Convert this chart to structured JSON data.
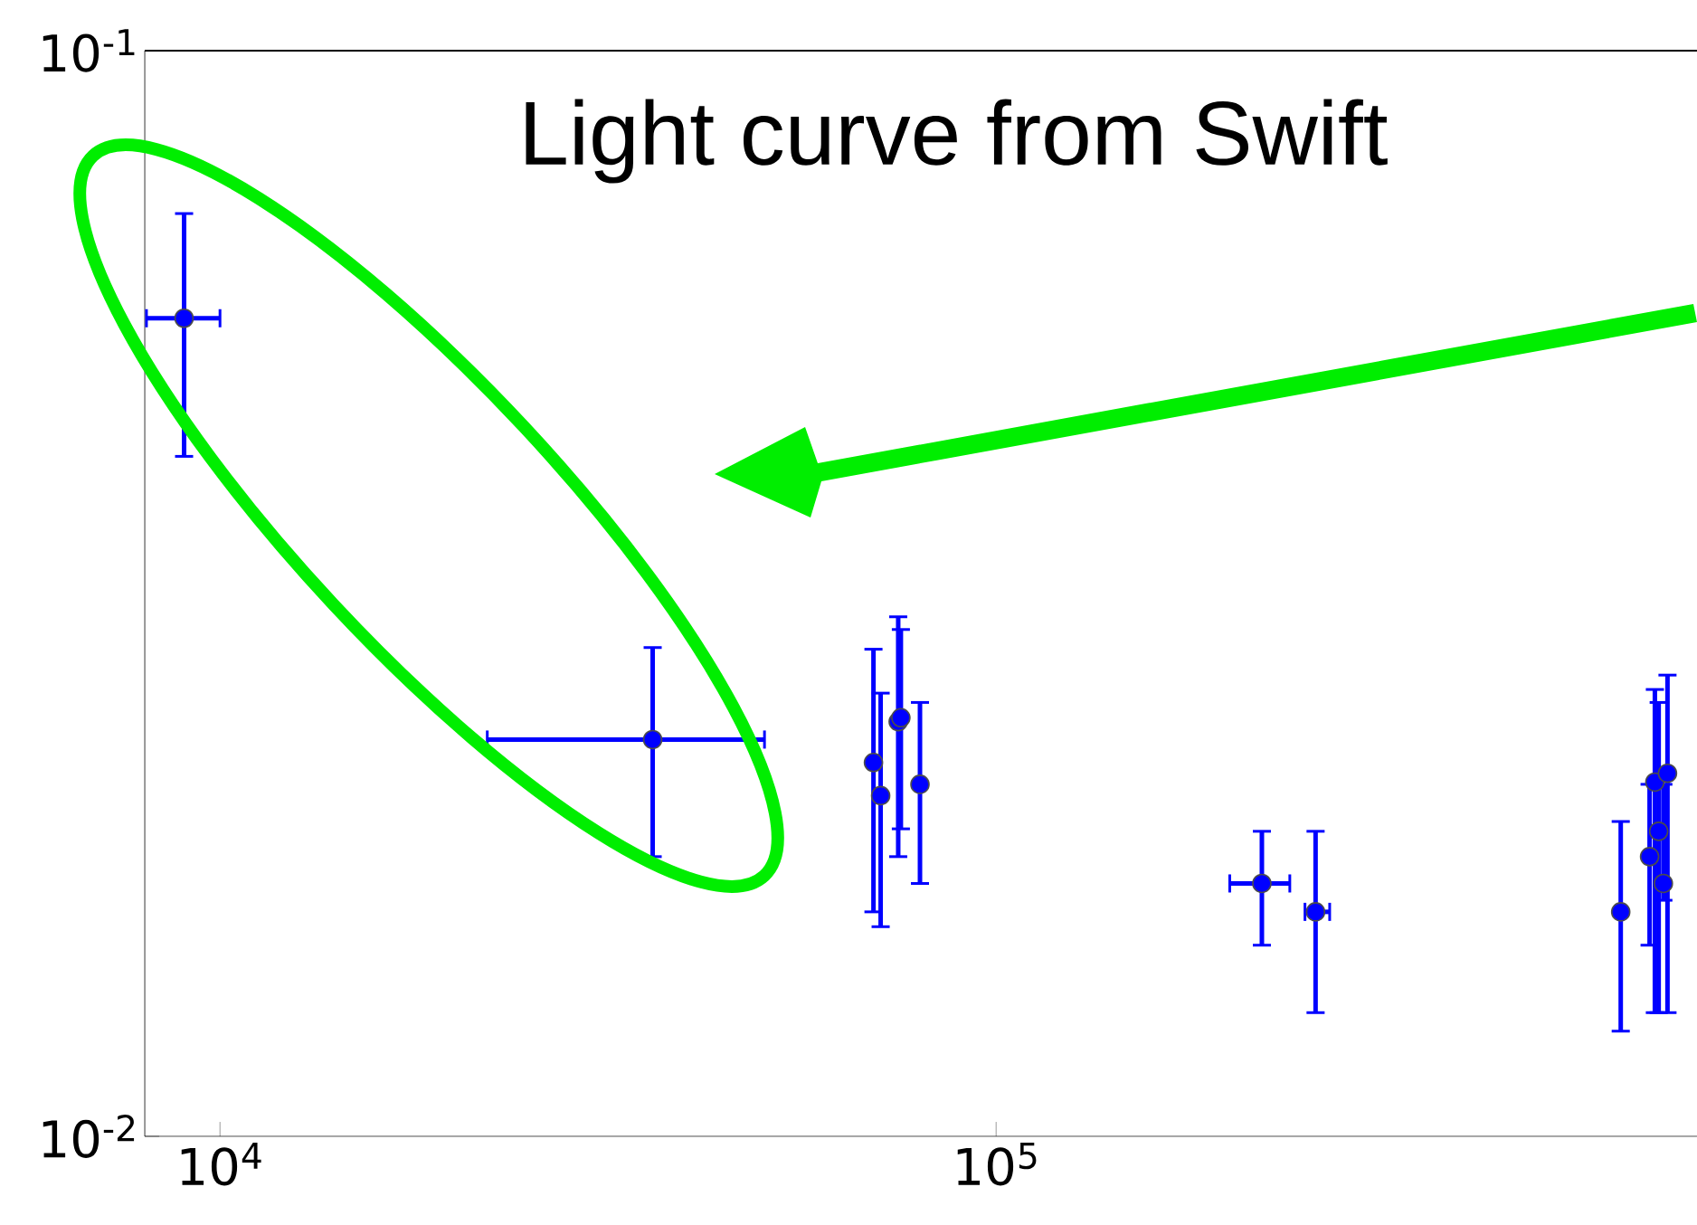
{
  "chart_data": {
    "type": "scatter",
    "log": "xy",
    "marker": "circle",
    "grid": false,
    "xlim": [
      8000,
      800000
    ],
    "ylim": [
      0.01,
      0.1
    ],
    "xticks": [
      {
        "value": 10000,
        "label": "10$^{4}$"
      },
      {
        "value": 100000,
        "label": "10$^{5}$"
      }
    ],
    "yticks": [
      {
        "value": 0.01,
        "label": "10$^{-2}$"
      },
      {
        "value": 0.1,
        "label": "10$^{-1}$"
      }
    ],
    "annotations": [
      "Light curve from Swift"
    ],
    "x": [
      8990,
      36100,
      69500,
      71000,
      74800,
      75400,
      79800,
      220000,
      258000,
      638000,
      695000,
      706000,
      714000,
      724000,
      733000
    ],
    "series": [
      {
        "color": "#0000ff",
        "values": [
          0.0567,
          0.0232,
          0.0221,
          0.0206,
          0.0241,
          0.0243,
          0.0211,
          0.0171,
          0.0161,
          0.0161,
          0.0181,
          0.0212,
          0.0191,
          0.0171,
          0.0216
        ],
        "errors": [
          [
            0.0423,
            0.0708
          ],
          [
            0.0181,
            0.0282
          ],
          [
            0.0161,
            0.0281
          ],
          [
            0.0156,
            0.0256
          ],
          [
            0.0181,
            0.0301
          ],
          [
            0.0192,
            0.0293
          ],
          [
            0.0171,
            0.0251
          ],
          [
            0.015,
            0.0191
          ],
          [
            0.013,
            0.0191
          ],
          [
            0.0125,
            0.0195
          ],
          [
            0.015,
            0.0211
          ],
          [
            0.013,
            0.0258
          ],
          [
            0.013,
            0.0251
          ],
          [
            0.0165,
            0.0211
          ],
          [
            0.013,
            0.0266
          ]
        ],
        "xerrors": [
          [
            8040,
            10000
          ],
          [
            22100,
            50300
          ],
          null,
          null,
          null,
          null,
          null,
          [
            200000,
            239000
          ],
          [
            250000,
            269000
          ],
          null,
          null,
          null,
          null,
          null,
          null
        ]
      }
    ]
  }
}
